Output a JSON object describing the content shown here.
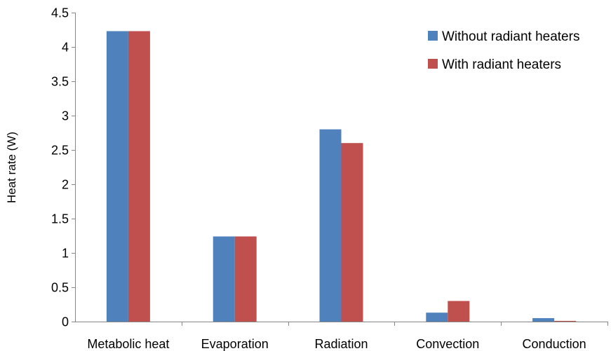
{
  "chart_data": {
    "type": "bar",
    "title": "",
    "xlabel": "",
    "ylabel": "Heat rate (W)",
    "ylim": [
      0,
      4.5
    ],
    "y_ticks": [
      "0",
      "0.5",
      "1",
      "1.5",
      "2",
      "2.5",
      "3",
      "3.5",
      "4",
      "4.5"
    ],
    "grid": false,
    "legend_position": "top-right",
    "categories": [
      "Metabolic heat",
      "Evaporation",
      "Radiation",
      "Convection",
      "Conduction"
    ],
    "series": [
      {
        "name": "Without radiant heaters",
        "color": "#4F81BD",
        "values": [
          4.23,
          1.24,
          2.8,
          0.13,
          0.05
        ]
      },
      {
        "name": "With radiant heaters",
        "color": "#C0504D",
        "values": [
          4.23,
          1.24,
          2.6,
          0.3,
          0.01
        ]
      }
    ]
  }
}
